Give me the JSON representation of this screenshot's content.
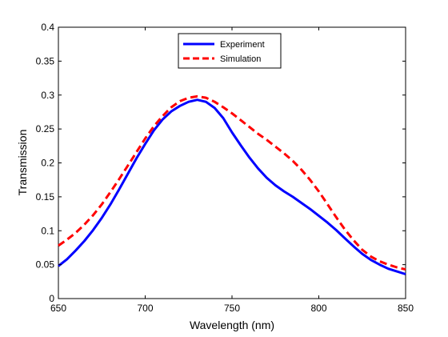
{
  "chart_data": {
    "type": "line",
    "title": "",
    "xlabel": "Wavelength (nm)",
    "ylabel": "Transmission",
    "xlim": [
      650,
      850
    ],
    "ylim": [
      0,
      0.4
    ],
    "xticks": [
      "650",
      "700",
      "750",
      "800",
      "850"
    ],
    "yticks": [
      "0",
      "0.05",
      "0.1",
      "0.15",
      "0.2",
      "0.25",
      "0.3",
      "0.35",
      "0.4"
    ],
    "grid": false,
    "legend_position": "top-center",
    "series": [
      {
        "name": "Experiment",
        "color": "#0000ff",
        "style": "solid",
        "x": [
          650,
          655,
          660,
          665,
          670,
          675,
          680,
          685,
          690,
          695,
          700,
          705,
          710,
          715,
          720,
          725,
          730,
          735,
          740,
          745,
          750,
          755,
          760,
          765,
          770,
          775,
          780,
          785,
          790,
          795,
          800,
          805,
          810,
          815,
          820,
          825,
          830,
          835,
          840,
          845,
          850
        ],
        "y": [
          0.048,
          0.058,
          0.071,
          0.085,
          0.101,
          0.119,
          0.139,
          0.161,
          0.184,
          0.207,
          0.228,
          0.248,
          0.264,
          0.276,
          0.284,
          0.29,
          0.293,
          0.29,
          0.281,
          0.266,
          0.245,
          0.226,
          0.208,
          0.192,
          0.178,
          0.167,
          0.158,
          0.15,
          0.141,
          0.132,
          0.122,
          0.112,
          0.101,
          0.089,
          0.077,
          0.066,
          0.057,
          0.05,
          0.044,
          0.04,
          0.036
        ]
      },
      {
        "name": "Simulation",
        "color": "#ff0000",
        "style": "dashed",
        "x": [
          650,
          655,
          660,
          665,
          670,
          675,
          680,
          685,
          690,
          695,
          700,
          705,
          710,
          715,
          720,
          725,
          730,
          735,
          740,
          745,
          750,
          755,
          760,
          765,
          770,
          775,
          780,
          785,
          790,
          795,
          800,
          805,
          810,
          815,
          820,
          825,
          830,
          835,
          840,
          845,
          850
        ],
        "y": [
          0.078,
          0.087,
          0.097,
          0.109,
          0.123,
          0.139,
          0.157,
          0.176,
          0.196,
          0.216,
          0.236,
          0.254,
          0.269,
          0.282,
          0.291,
          0.296,
          0.298,
          0.296,
          0.29,
          0.282,
          0.273,
          0.263,
          0.253,
          0.243,
          0.234,
          0.224,
          0.214,
          0.203,
          0.19,
          0.175,
          0.158,
          0.139,
          0.12,
          0.102,
          0.086,
          0.072,
          0.062,
          0.055,
          0.05,
          0.046,
          0.043
        ]
      }
    ]
  }
}
